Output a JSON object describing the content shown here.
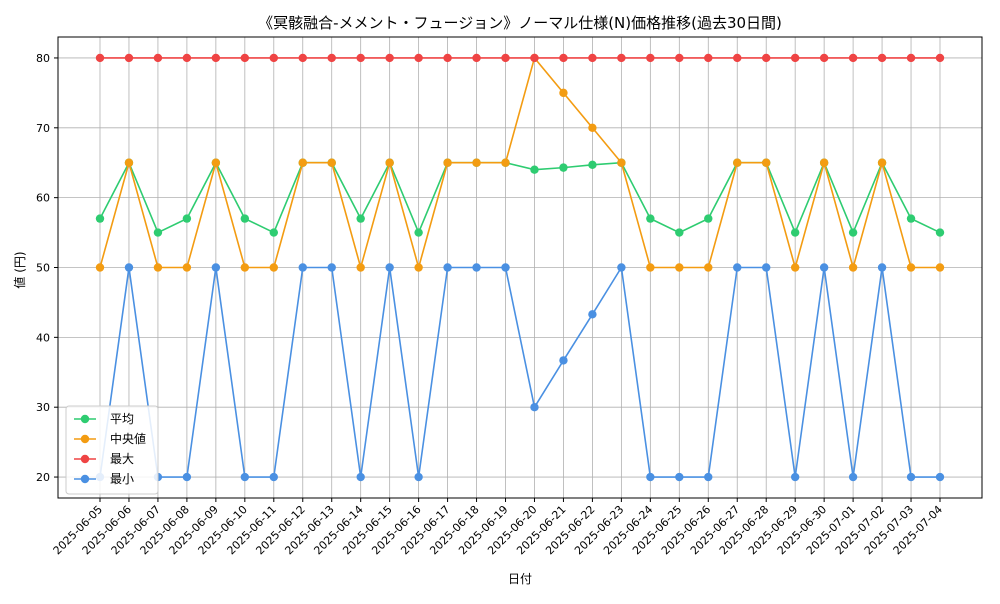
{
  "chart_data": {
    "type": "line",
    "title": "《冥骸融合-メメント・フュージョン》ノーマル仕様(N)価格推移(過去30日間)",
    "xlabel": "日付",
    "ylabel": "値 (円)",
    "ylim": [
      17,
      83
    ],
    "yticks": [
      20,
      30,
      40,
      50,
      60,
      70,
      80
    ],
    "grid": true,
    "legend_position": "lower-left",
    "categories": [
      "2025-06-05",
      "2025-06-06",
      "2025-06-07",
      "2025-06-08",
      "2025-06-09",
      "2025-06-10",
      "2025-06-11",
      "2025-06-12",
      "2025-06-13",
      "2025-06-14",
      "2025-06-15",
      "2025-06-16",
      "2025-06-17",
      "2025-06-18",
      "2025-06-19",
      "2025-06-20",
      "2025-06-21",
      "2025-06-22",
      "2025-06-23",
      "2025-06-24",
      "2025-06-25",
      "2025-06-26",
      "2025-06-27",
      "2025-06-28",
      "2025-06-29",
      "2025-06-30",
      "2025-07-01",
      "2025-07-02",
      "2025-07-03",
      "2025-07-04"
    ],
    "series": [
      {
        "name": "平均",
        "color": "#2ecc71",
        "values": [
          57,
          65,
          55,
          57,
          65,
          57,
          55,
          65,
          65,
          57,
          65,
          55,
          65,
          65,
          65,
          64,
          64.3,
          64.7,
          65,
          57,
          55,
          57,
          65,
          65,
          55,
          65,
          55,
          65,
          57,
          55
        ]
      },
      {
        "name": "中央値",
        "color": "#f39c12",
        "values": [
          50,
          65,
          50,
          50,
          65,
          50,
          50,
          65,
          65,
          50,
          65,
          50,
          65,
          65,
          65,
          80,
          75,
          70,
          65,
          50,
          50,
          50,
          65,
          65,
          50,
          65,
          50,
          65,
          50,
          50
        ]
      },
      {
        "name": "最大",
        "color": "#ef4444",
        "values": [
          80,
          80,
          80,
          80,
          80,
          80,
          80,
          80,
          80,
          80,
          80,
          80,
          80,
          80,
          80,
          80,
          80,
          80,
          80,
          80,
          80,
          80,
          80,
          80,
          80,
          80,
          80,
          80,
          80,
          80
        ]
      },
      {
        "name": "最小",
        "color": "#4a90e2",
        "values": [
          20,
          50,
          20,
          20,
          50,
          20,
          20,
          50,
          50,
          20,
          50,
          20,
          50,
          50,
          50,
          30,
          36.7,
          43.3,
          50,
          20,
          20,
          20,
          50,
          50,
          20,
          50,
          20,
          50,
          20,
          20
        ]
      }
    ]
  }
}
